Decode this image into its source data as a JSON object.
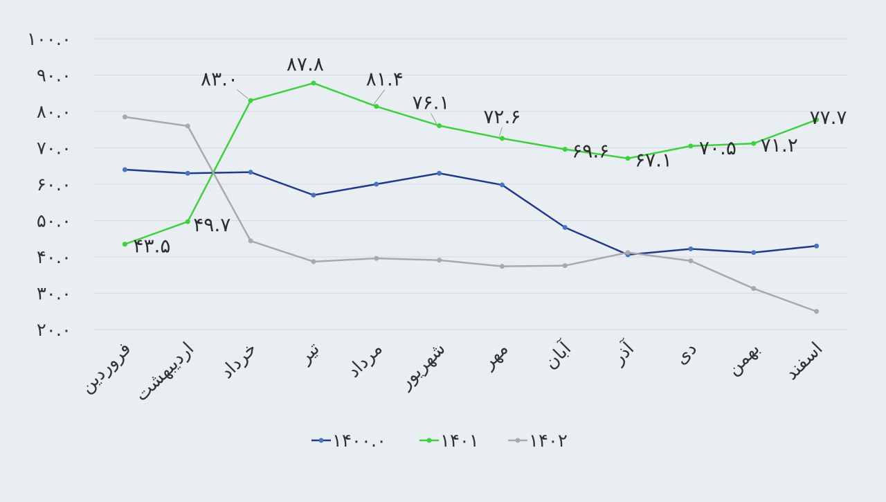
{
  "chart_data": {
    "type": "line",
    "categories": [
      "فروردین",
      "اردیبهشت",
      "خرداد",
      "تیر",
      "مرداد",
      "شهریور",
      "مهر",
      "آبان",
      "آذر",
      "دی",
      "بهمن",
      "اسفند"
    ],
    "category_labels": [
      "فروردین",
      "اردیبهشت",
      "خرداد",
      "تیر",
      "مرداد",
      "شهریور",
      "مهر",
      "آبان",
      "آذر",
      "دی",
      "بهمن",
      "اسفند"
    ],
    "ylim": [
      20,
      100
    ],
    "ytick_values": [
      20,
      30,
      40,
      50,
      60,
      70,
      80,
      90,
      100
    ],
    "ytick_labels": [
      "۲۰.۰",
      "۳۰.۰",
      "۴۰.۰",
      "۵۰.۰",
      "۶۰.۰",
      "۷۰.۰",
      "۸۰.۰",
      "۹۰.۰",
      "۱۰۰.۰"
    ],
    "grid": true,
    "legend_position": "bottom",
    "series": [
      {
        "name": "۱۴۰۰.۰",
        "color": "#1f3a8a",
        "marker_color": "#4a72c4",
        "values": [
          64.0,
          63.0,
          63.3,
          57.0,
          60.0,
          63.0,
          59.8,
          48.1,
          40.6,
          42.2,
          41.2,
          43.0
        ]
      },
      {
        "name": "۱۴۰۱",
        "color": "#3fcf3f",
        "marker_color": "#3fcf3f",
        "values": [
          43.5,
          49.7,
          83.0,
          87.8,
          81.4,
          76.1,
          72.6,
          69.6,
          67.1,
          70.5,
          71.2,
          77.7
        ],
        "data_labels": [
          "۴۳.۵",
          "۴۹.۷",
          "۸۳.۰",
          "۸۷.۸",
          "۸۱.۴",
          "۷۶.۱",
          "۷۲.۶",
          "۶۹.۶",
          "۶۷.۱",
          "۷۰.۵",
          "۷۱.۲",
          "۷۷.۷"
        ]
      },
      {
        "name": "۱۴۰۲",
        "color": "#a9a9a9",
        "marker_color": "#a9a9a9",
        "values": [
          78.5,
          76.0,
          44.4,
          38.7,
          39.6,
          39.1,
          37.4,
          37.6,
          41.2,
          38.9,
          31.3,
          25.0
        ]
      }
    ]
  }
}
